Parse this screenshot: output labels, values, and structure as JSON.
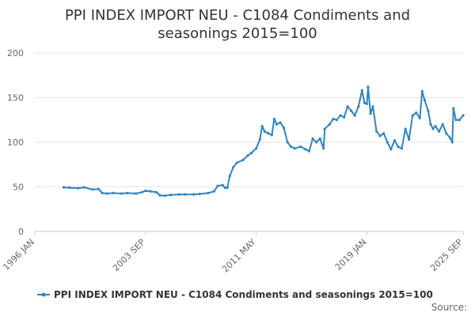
{
  "chart_data": {
    "type": "line",
    "title_line1": "PPI INDEX IMPORT NEU - C1084 Condiments and",
    "title_line2": "seasonings 2015=100",
    "xlabel": "",
    "ylabel": "",
    "ylim": [
      0,
      200
    ],
    "yticks": [
      "0",
      "50",
      "100",
      "150",
      "200"
    ],
    "xlim": [
      "1996-01",
      "2025-09"
    ],
    "xticks": [
      "1996 JAN",
      "2003 SEP",
      "2011 MAY",
      "2019 JAN",
      "2025 SEP"
    ],
    "grid": "horizontal",
    "legend_position": "bottom",
    "color": "#2e85c1",
    "series": [
      {
        "name": "PPI INDEX IMPORT NEU - C1084 Condiments and seasonings 2015=100",
        "points": [
          [
            "1998-01",
            49.5
          ],
          [
            "1998-06",
            49
          ],
          [
            "1999-01",
            48.5
          ],
          [
            "1999-06",
            49.5
          ],
          [
            "2000-01",
            47
          ],
          [
            "2000-06",
            47.5
          ],
          [
            "2000-09",
            43
          ],
          [
            "2001-01",
            42.5
          ],
          [
            "2001-06",
            43
          ],
          [
            "2002-01",
            42.5
          ],
          [
            "2002-06",
            43
          ],
          [
            "2003-01",
            42.5
          ],
          [
            "2003-06",
            44
          ],
          [
            "2003-09",
            45.5
          ],
          [
            "2004-01",
            45
          ],
          [
            "2004-06",
            44
          ],
          [
            "2004-09",
            40.5
          ],
          [
            "2005-01",
            40
          ],
          [
            "2005-06",
            41
          ],
          [
            "2006-01",
            41.5
          ],
          [
            "2006-06",
            41.5
          ],
          [
            "2007-01",
            41.5
          ],
          [
            "2007-06",
            42
          ],
          [
            "2008-01",
            43
          ],
          [
            "2008-06",
            45
          ],
          [
            "2008-09",
            51
          ],
          [
            "2009-01",
            52
          ],
          [
            "2009-03",
            49
          ],
          [
            "2009-05",
            49
          ],
          [
            "2009-07",
            62
          ],
          [
            "2009-10",
            72
          ],
          [
            "2010-01",
            77
          ],
          [
            "2010-06",
            80
          ],
          [
            "2010-10",
            85
          ],
          [
            "2011-01",
            88
          ],
          [
            "2011-05",
            93
          ],
          [
            "2011-08",
            103
          ],
          [
            "2011-10",
            118
          ],
          [
            "2011-12",
            112
          ],
          [
            "2012-03",
            110
          ],
          [
            "2012-06",
            108
          ],
          [
            "2012-08",
            126
          ],
          [
            "2012-10",
            120
          ],
          [
            "2013-01",
            122
          ],
          [
            "2013-04",
            116
          ],
          [
            "2013-07",
            100
          ],
          [
            "2013-10",
            95
          ],
          [
            "2014-01",
            93
          ],
          [
            "2014-06",
            95
          ],
          [
            "2014-10",
            92
          ],
          [
            "2015-01",
            90
          ],
          [
            "2015-04",
            104
          ],
          [
            "2015-07",
            100
          ],
          [
            "2015-10",
            104
          ],
          [
            "2016-01",
            93
          ],
          [
            "2016-02",
            115
          ],
          [
            "2016-06",
            120
          ],
          [
            "2016-09",
            126
          ],
          [
            "2016-12",
            125
          ],
          [
            "2017-03",
            130
          ],
          [
            "2017-06",
            128
          ],
          [
            "2017-09",
            140
          ],
          [
            "2017-12",
            135
          ],
          [
            "2018-03",
            130
          ],
          [
            "2018-06",
            140
          ],
          [
            "2018-09",
            158
          ],
          [
            "2018-11",
            144
          ],
          [
            "2019-01",
            143
          ],
          [
            "2019-02",
            162
          ],
          [
            "2019-04",
            132
          ],
          [
            "2019-06",
            140
          ],
          [
            "2019-09",
            112
          ],
          [
            "2019-12",
            107
          ],
          [
            "2020-03",
            110
          ],
          [
            "2020-06",
            100
          ],
          [
            "2020-09",
            92
          ],
          [
            "2020-12",
            102
          ],
          [
            "2021-03",
            95
          ],
          [
            "2021-06",
            93
          ],
          [
            "2021-09",
            115
          ],
          [
            "2021-12",
            103
          ],
          [
            "2022-03",
            130
          ],
          [
            "2022-06",
            133
          ],
          [
            "2022-09",
            127
          ],
          [
            "2022-11",
            157
          ],
          [
            "2023-01",
            147
          ],
          [
            "2023-04",
            135
          ],
          [
            "2023-06",
            120
          ],
          [
            "2023-08",
            115
          ],
          [
            "2023-10",
            118
          ],
          [
            "2024-01",
            112
          ],
          [
            "2024-04",
            120
          ],
          [
            "2024-07",
            110
          ],
          [
            "2024-10",
            105
          ],
          [
            "2024-12",
            100
          ],
          [
            "2025-01",
            138
          ],
          [
            "2025-03",
            125
          ],
          [
            "2025-06",
            125
          ],
          [
            "2025-09",
            130
          ]
        ]
      }
    ]
  },
  "source_label": "Source:"
}
